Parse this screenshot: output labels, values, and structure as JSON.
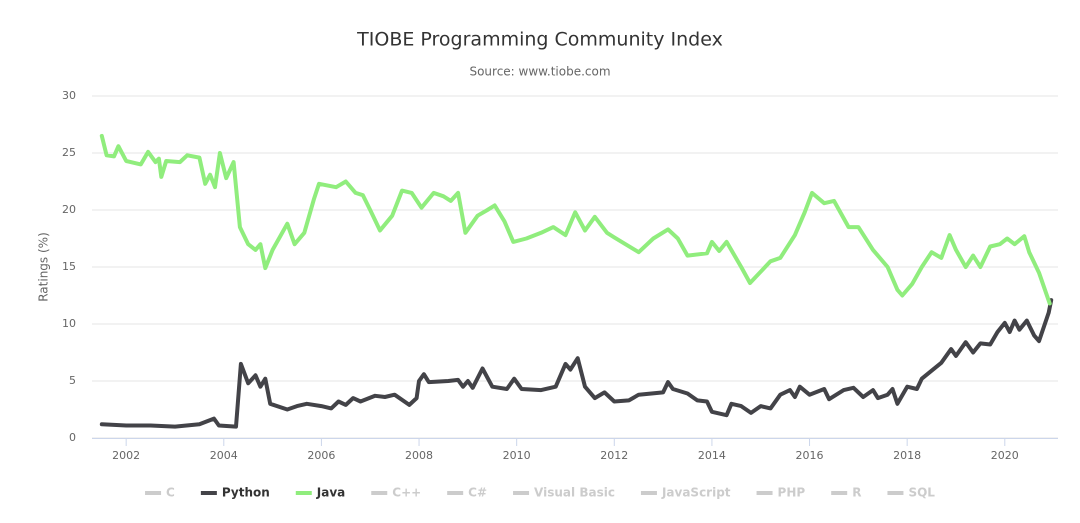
{
  "chart_data": {
    "type": "line",
    "title": "TIOBE Programming Community Index",
    "subtitle": "Source: www.tiobe.com",
    "y_label": "Ratings (%)",
    "xlim": [
      2001.3,
      2021.09
    ],
    "xticks": [
      2002,
      2004,
      2006,
      2008,
      2010,
      2012,
      2014,
      2016,
      2018,
      2020
    ],
    "ylim": [
      0,
      30
    ],
    "yticks": [
      0,
      5,
      10,
      15,
      20,
      25,
      30
    ],
    "grid": true,
    "legend": "bottom",
    "series": [
      {
        "name": "C",
        "color": "#cccccc",
        "hidden": true
      },
      {
        "name": "Python",
        "color": "#434348",
        "x": [
          2001.5,
          2002.0,
          2002.5,
          2003.0,
          2003.5,
          2003.8,
          2003.9,
          2004.25,
          2004.35,
          2004.5,
          2004.65,
          2004.75,
          2004.85,
          2004.95,
          2005.3,
          2005.5,
          2005.7,
          2006.0,
          2006.2,
          2006.35,
          2006.5,
          2006.65,
          2006.8,
          2007.1,
          2007.3,
          2007.5,
          2007.8,
          2007.95,
          2008.0,
          2008.1,
          2008.2,
          2008.6,
          2008.8,
          2008.9,
          2009.0,
          2009.1,
          2009.3,
          2009.5,
          2009.8,
          2009.95,
          2010.1,
          2010.5,
          2010.8,
          2011.0,
          2011.1,
          2011.25,
          2011.4,
          2011.6,
          2011.8,
          2012.0,
          2012.3,
          2012.5,
          2013.0,
          2013.1,
          2013.2,
          2013.5,
          2013.7,
          2013.9,
          2014.0,
          2014.3,
          2014.4,
          2014.6,
          2014.8,
          2015.0,
          2015.2,
          2015.4,
          2015.6,
          2015.7,
          2015.8,
          2016.0,
          2016.3,
          2016.4,
          2016.7,
          2016.9,
          2017.1,
          2017.3,
          2017.4,
          2017.6,
          2017.7,
          2017.8,
          2018.0,
          2018.2,
          2018.3,
          2018.5,
          2018.7,
          2018.9,
          2019.0,
          2019.2,
          2019.35,
          2019.5,
          2019.7,
          2019.85,
          2020.0,
          2020.1,
          2020.2,
          2020.3,
          2020.45,
          2020.6,
          2020.7,
          2020.9,
          2020.95
        ],
        "values": [
          1.2,
          1.1,
          1.1,
          1.0,
          1.2,
          1.7,
          1.1,
          1.0,
          6.5,
          4.8,
          5.5,
          4.5,
          5.2,
          3.0,
          2.5,
          2.8,
          3.0,
          2.8,
          2.6,
          3.2,
          2.9,
          3.5,
          3.2,
          3.7,
          3.6,
          3.8,
          2.9,
          3.5,
          5.0,
          5.6,
          4.9,
          5.0,
          5.1,
          4.5,
          5.0,
          4.4,
          6.1,
          4.5,
          4.3,
          5.2,
          4.3,
          4.2,
          4.5,
          6.5,
          6.0,
          7.0,
          4.5,
          3.5,
          4.0,
          3.2,
          3.3,
          3.8,
          4.0,
          4.9,
          4.3,
          3.9,
          3.3,
          3.2,
          2.3,
          2.0,
          3.0,
          2.8,
          2.2,
          2.8,
          2.6,
          3.8,
          4.2,
          3.6,
          4.5,
          3.8,
          4.3,
          3.4,
          4.2,
          4.4,
          3.6,
          4.2,
          3.5,
          3.8,
          4.3,
          3.0,
          4.5,
          4.3,
          5.2,
          5.9,
          6.6,
          7.8,
          7.2,
          8.4,
          7.5,
          8.3,
          8.2,
          9.3,
          10.1,
          9.3,
          10.3,
          9.5,
          10.3,
          9.0,
          8.5,
          11.0,
          12.1
        ]
      },
      {
        "name": "Java",
        "color": "#90ed7d",
        "x": [
          2001.5,
          2001.6,
          2001.75,
          2001.84,
          2002.0,
          2002.3,
          2002.45,
          2002.6,
          2002.67,
          2002.72,
          2002.82,
          2003.1,
          2003.25,
          2003.5,
          2003.62,
          2003.72,
          2003.82,
          2003.92,
          2004.05,
          2004.2,
          2004.33,
          2004.5,
          2004.65,
          2004.75,
          2004.85,
          2005.0,
          2005.3,
          2005.45,
          2005.65,
          2005.85,
          2005.95,
          2006.3,
          2006.5,
          2006.7,
          2006.85,
          2007.0,
          2007.2,
          2007.45,
          2007.65,
          2007.85,
          2008.05,
          2008.3,
          2008.5,
          2008.65,
          2008.8,
          2008.95,
          2009.2,
          2009.4,
          2009.55,
          2009.75,
          2009.93,
          2010.2,
          2010.5,
          2010.75,
          2011.0,
          2011.2,
          2011.4,
          2011.6,
          2011.85,
          2012.0,
          2012.5,
          2012.8,
          2013.1,
          2013.3,
          2013.5,
          2013.9,
          2014.0,
          2014.15,
          2014.3,
          2014.6,
          2014.78,
          2015.2,
          2015.4,
          2015.7,
          2015.9,
          2016.05,
          2016.3,
          2016.5,
          2016.8,
          2017.0,
          2017.3,
          2017.6,
          2017.8,
          2017.9,
          2018.1,
          2018.3,
          2018.5,
          2018.7,
          2018.87,
          2019.0,
          2019.2,
          2019.35,
          2019.5,
          2019.7,
          2019.9,
          2020.05,
          2020.2,
          2020.4,
          2020.5,
          2020.7,
          2020.92
        ],
        "values": [
          26.5,
          24.8,
          24.7,
          25.6,
          24.3,
          24.0,
          25.1,
          24.2,
          24.5,
          22.9,
          24.3,
          24.2,
          24.8,
          24.6,
          22.3,
          23.1,
          22.0,
          25.0,
          22.8,
          24.2,
          18.5,
          17.0,
          16.5,
          17.0,
          14.9,
          16.5,
          18.8,
          17.0,
          18.0,
          21.0,
          22.3,
          22.0,
          22.5,
          21.5,
          21.3,
          20.0,
          18.2,
          19.5,
          21.7,
          21.5,
          20.2,
          21.5,
          21.2,
          20.8,
          21.5,
          18.0,
          19.5,
          20.0,
          20.4,
          19.0,
          17.2,
          17.5,
          18.0,
          18.5,
          17.8,
          19.8,
          18.2,
          19.4,
          18.0,
          17.6,
          16.3,
          17.5,
          18.3,
          17.5,
          16.0,
          16.2,
          17.2,
          16.4,
          17.2,
          15.0,
          13.6,
          15.5,
          15.8,
          17.8,
          19.8,
          21.5,
          20.6,
          20.8,
          18.5,
          18.5,
          16.5,
          15.0,
          13.0,
          12.5,
          13.5,
          15.0,
          16.3,
          15.8,
          17.8,
          16.5,
          15.0,
          16.0,
          15.0,
          16.8,
          17.0,
          17.5,
          17.0,
          17.7,
          16.3,
          14.5,
          11.8
        ]
      },
      {
        "name": "C++",
        "color": "#cccccc",
        "hidden": true
      },
      {
        "name": "C#",
        "color": "#cccccc",
        "hidden": true
      },
      {
        "name": "Visual Basic",
        "color": "#cccccc",
        "hidden": true
      },
      {
        "name": "JavaScript",
        "color": "#cccccc",
        "hidden": true
      },
      {
        "name": "PHP",
        "color": "#cccccc",
        "hidden": true
      },
      {
        "name": "R",
        "color": "#cccccc",
        "hidden": true
      },
      {
        "name": "SQL",
        "color": "#cccccc",
        "hidden": true
      }
    ]
  }
}
